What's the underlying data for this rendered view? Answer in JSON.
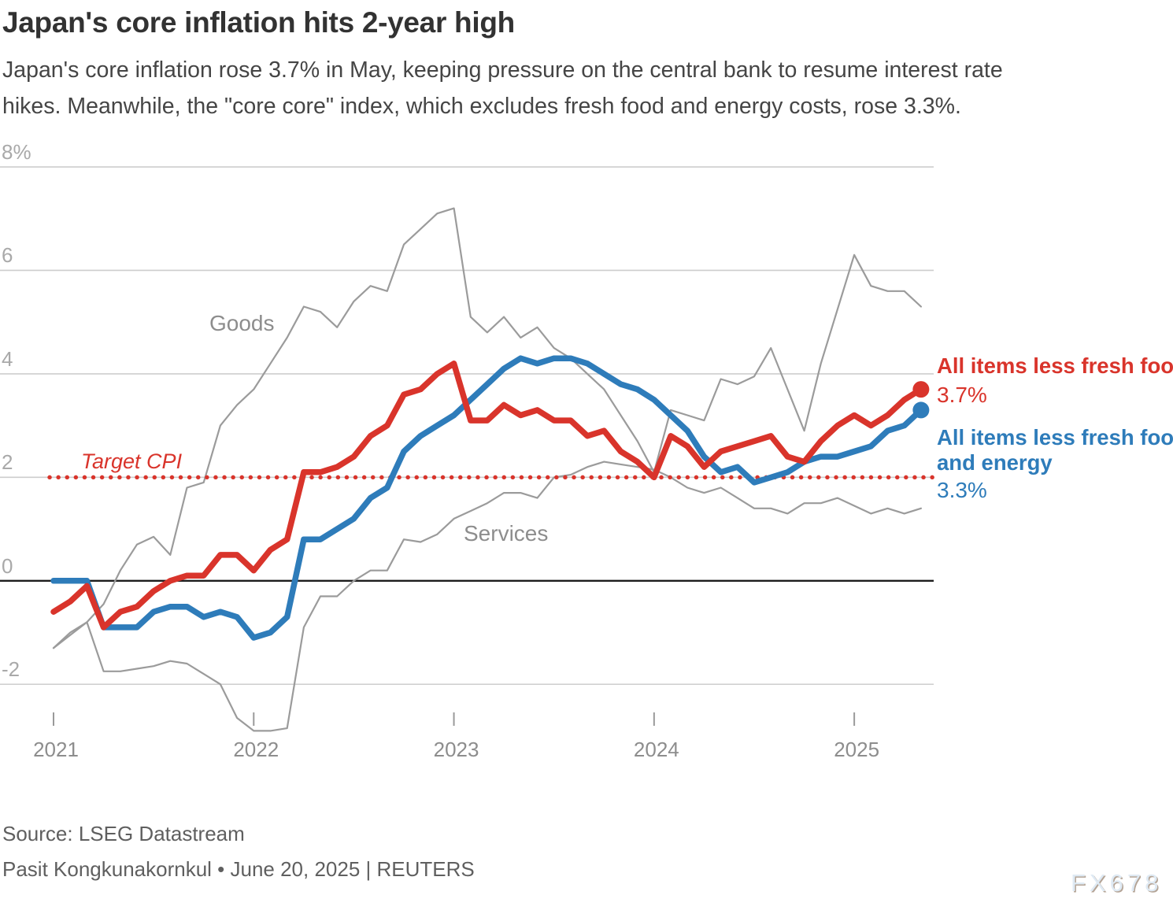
{
  "header": {
    "title": "Japan's core inflation hits 2-year high",
    "subtitle_line1": "Japan's core inflation rose 3.7% in May, keeping pressure on the central bank to resume interest rate",
    "subtitle_line2": "hikes. Meanwhile, the \"core core\" index, which excludes fresh food and energy costs, rose 3.3%."
  },
  "chart_data": {
    "type": "line",
    "title": "Japan's core inflation hits 2-year high",
    "x_unit": "month",
    "x_start": "2021-01",
    "x_end": "2025-05",
    "ylim": [
      -3.2,
      8
    ],
    "grid": "horizontal",
    "y_ticks": [
      {
        "value": 8,
        "label": "8%"
      },
      {
        "value": 6,
        "label": "6"
      },
      {
        "value": 4,
        "label": "4"
      },
      {
        "value": 2,
        "label": "2"
      },
      {
        "value": 0,
        "label": "0"
      },
      {
        "value": -2,
        "label": "-2"
      }
    ],
    "x_ticks": [
      2021,
      2022,
      2023,
      2024,
      2025
    ],
    "target_line": {
      "value": 2,
      "label": "Target CPI",
      "color": "#d9342b",
      "style": "dotted"
    },
    "series": [
      {
        "name": "Goods",
        "color": "#9b9b9b",
        "width": 2.2,
        "end_dot": false,
        "values": [
          -1.3,
          -1.0,
          -0.8,
          -0.45,
          0.2,
          0.7,
          0.85,
          0.5,
          1.8,
          1.9,
          3.0,
          3.4,
          3.7,
          4.2,
          4.7,
          5.3,
          5.2,
          4.9,
          5.4,
          5.7,
          5.6,
          6.5,
          6.8,
          7.1,
          7.2,
          5.1,
          4.8,
          5.1,
          4.7,
          4.9,
          4.5,
          4.3,
          4.0,
          3.7,
          3.2,
          2.7,
          2.1,
          3.3,
          3.2,
          3.1,
          3.9,
          3.8,
          3.95,
          4.5,
          3.7,
          2.9,
          4.2,
          5.25,
          6.3,
          5.7,
          5.6,
          5.6,
          5.3
        ]
      },
      {
        "name": "Services",
        "color": "#9b9b9b",
        "width": 2.2,
        "end_dot": false,
        "values": [
          -1.3,
          -1.05,
          -0.8,
          -1.75,
          -1.75,
          -1.7,
          -1.65,
          -1.55,
          -1.6,
          -1.8,
          -2.0,
          -2.65,
          -2.9,
          -2.9,
          -2.85,
          -0.9,
          -0.3,
          -0.3,
          0.0,
          0.2,
          0.2,
          0.8,
          0.75,
          0.9,
          1.2,
          1.35,
          1.5,
          1.7,
          1.7,
          1.6,
          2.0,
          2.05,
          2.2,
          2.3,
          2.25,
          2.2,
          2.15,
          2.0,
          1.8,
          1.7,
          1.8,
          1.6,
          1.4,
          1.4,
          1.3,
          1.5,
          1.5,
          1.6,
          1.45,
          1.3,
          1.4,
          1.3,
          1.4
        ]
      },
      {
        "name": "All items less fresh food",
        "color": "#2e7cba2",
        "width": 7.5,
        "end_dot": true,
        "latest_label": "3.7%",
        "values": [
          -0.6,
          -0.4,
          -0.1,
          -0.9,
          -0.6,
          -0.5,
          -0.2,
          0.0,
          0.1,
          0.1,
          0.5,
          0.5,
          0.2,
          0.6,
          0.8,
          2.1,
          2.1,
          2.2,
          2.4,
          2.8,
          3.0,
          3.6,
          3.7,
          4.0,
          4.2,
          3.1,
          3.1,
          3.4,
          3.2,
          3.3,
          3.1,
          3.1,
          2.8,
          2.9,
          2.5,
          2.3,
          2.0,
          2.8,
          2.6,
          2.2,
          2.5,
          2.6,
          2.7,
          2.8,
          2.4,
          2.3,
          2.7,
          3.0,
          3.2,
          3.0,
          3.2,
          3.5,
          3.7
        ]
      },
      {
        "name": "All items less fresh food and energy",
        "color": "#2e7cba",
        "width": 7.5,
        "end_dot": true,
        "latest_label": "3.3%",
        "values": [
          0.0,
          0.0,
          0.0,
          -0.9,
          -0.9,
          -0.9,
          -0.6,
          -0.5,
          -0.5,
          -0.7,
          -0.6,
          -0.7,
          -1.1,
          -1.0,
          -0.7,
          0.8,
          0.8,
          1.0,
          1.2,
          1.6,
          1.8,
          2.5,
          2.8,
          3.0,
          3.2,
          3.5,
          3.8,
          4.1,
          4.3,
          4.2,
          4.3,
          4.3,
          4.2,
          4.0,
          3.8,
          3.7,
          3.5,
          3.2,
          2.9,
          2.4,
          2.1,
          2.2,
          1.9,
          2.0,
          2.1,
          2.3,
          2.4,
          2.4,
          2.5,
          2.6,
          2.9,
          3.0,
          3.3
        ]
      }
    ],
    "colors": {
      "red": "#d9342b",
      "blue": "#2e7cba",
      "gray_line": "#9b9b9b",
      "gridline": "#cdcdcd",
      "zero_line": "#1c1c1c"
    }
  },
  "annotations": {
    "goods_label": "Goods",
    "services_label": "Services",
    "target_label": "Target CPI",
    "red_label": "All items less fresh food",
    "red_value": "3.7%",
    "blue_label_line1": "All items less fresh food",
    "blue_label_line2": "and energy",
    "blue_value": "3.3%"
  },
  "footer": {
    "source": "Source: LSEG Datastream",
    "byline": "Pasit Kongkunakornkul • June 20, 2025 | REUTERS",
    "watermark": "FX678"
  }
}
